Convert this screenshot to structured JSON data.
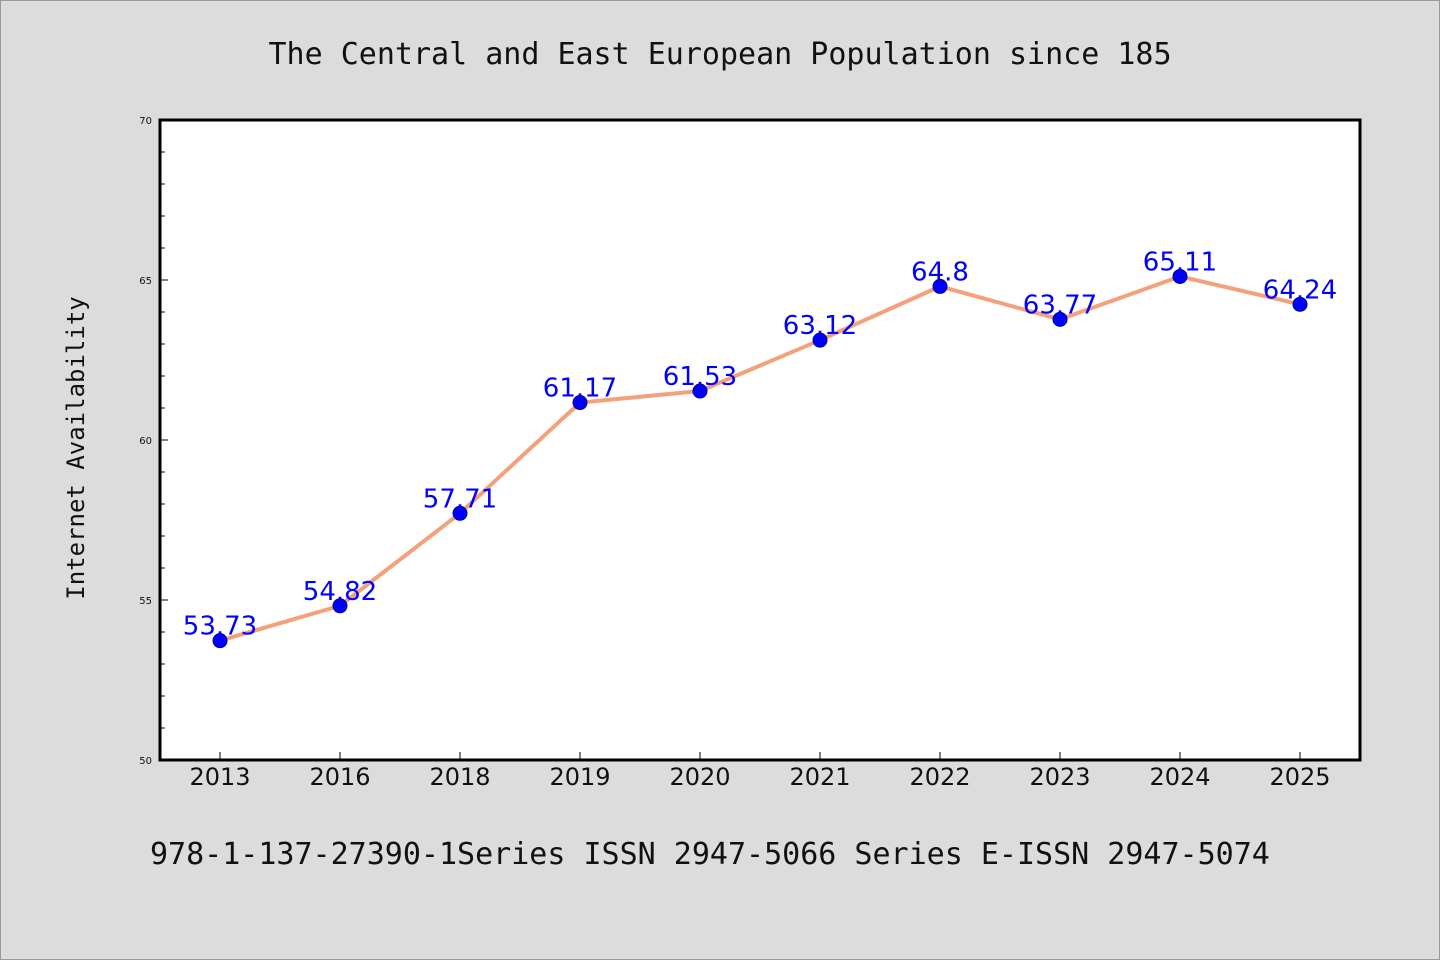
{
  "chart_data": {
    "type": "line",
    "title": "The Central and East European Population since 185",
    "xlabel": "",
    "ylabel": "Internet Availability",
    "categories": [
      "2013",
      "2016",
      "2018",
      "2019",
      "2020",
      "2021",
      "2022",
      "2023",
      "2024",
      "2025"
    ],
    "series": [
      {
        "values": [
          53.73,
          54.82,
          57.71,
          61.17,
          61.53,
          63.12,
          64.8,
          63.77,
          65.11,
          64.24
        ],
        "data_labels": [
          "53.73",
          "54.82",
          "57.71",
          "61.17",
          "61.53",
          "63.12",
          "64.8",
          "63.77",
          "65.11",
          "64.24"
        ],
        "line_color": "#f4a07a",
        "marker_color": "#0000ff"
      }
    ],
    "ylim": [
      50,
      70
    ],
    "yticks": [
      "50",
      "55",
      "60",
      "65",
      "70"
    ],
    "grid": false,
    "data_label_color": "#0000ff"
  },
  "footer": {
    "text": "978-1-137-27390-1Series ISSN 2947-5066 Series E-ISSN 2947-5074"
  },
  "colors": {
    "background": "#dcdcdc",
    "plot_background": "#ffffff"
  }
}
